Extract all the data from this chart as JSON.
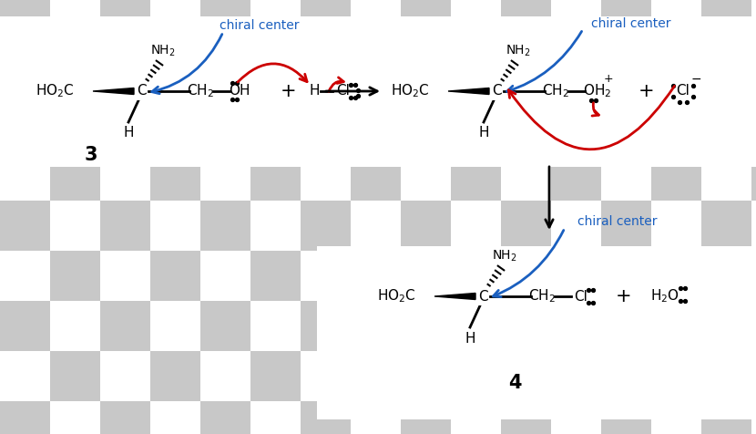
{
  "checker_color": "#c8c8c8",
  "checker_size": 55,
  "blue": "#1a5fbf",
  "red": "#cc0000",
  "black": "#111111",
  "label3": "3",
  "label4": "4",
  "chiral_label": "chiral center"
}
